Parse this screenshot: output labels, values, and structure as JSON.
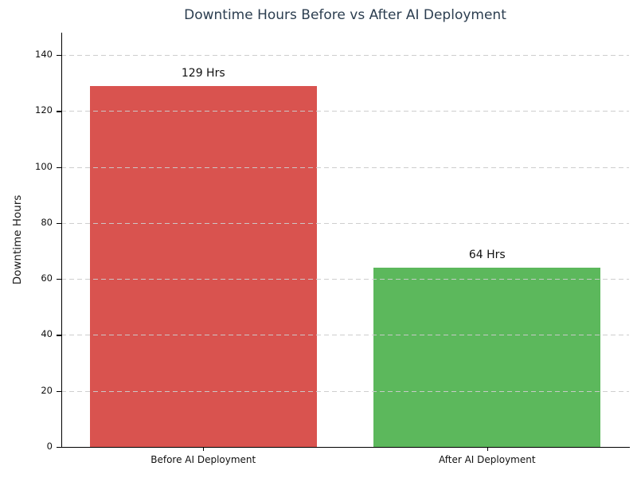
{
  "chart_data": {
    "type": "bar",
    "title": "Downtime Hours Before vs After AI Deployment",
    "categories": [
      "Before AI Deployment",
      "After AI Deployment"
    ],
    "values": [
      129,
      64
    ],
    "value_labels": [
      "129 Hrs",
      "64 Hrs"
    ],
    "bar_colors": [
      "#d9534f",
      "#5cb85c"
    ],
    "xlabel": "",
    "ylabel": "Downtime Hours",
    "ylim": [
      0,
      148
    ],
    "yticks": [
      0,
      20,
      40,
      60,
      80,
      100,
      120,
      140
    ],
    "grid": "horizontal-dashed",
    "grid_color": "#cccccc",
    "legend": "none",
    "title_color": "#2c3e50",
    "bar_width_fraction": 0.8
  }
}
